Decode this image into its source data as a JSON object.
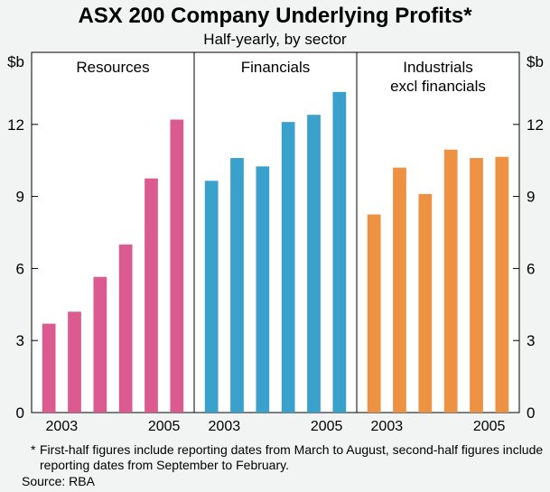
{
  "title": "ASX 200 Company Underlying Profits*",
  "subtitle": "Half-yearly, by sector",
  "footnote_marker": "*",
  "footnote": "First-half figures include reporting dates from March to August, second-half figures include reporting dates from September to February.",
  "source": "Source: RBA",
  "chart_data": {
    "type": "bar",
    "unit_left": "$b",
    "unit_right": "$b",
    "ylim": [
      0,
      15
    ],
    "yticks": [
      0,
      3,
      6,
      9,
      12
    ],
    "grid": false,
    "x_tick_labels": [
      "2003",
      "2005"
    ],
    "panels": [
      {
        "name": "Resources",
        "label_lines": [
          "Resources"
        ],
        "color": "#db5a8f",
        "values": [
          3.7,
          4.2,
          5.65,
          7.0,
          9.75,
          12.2
        ]
      },
      {
        "name": "Financials",
        "label_lines": [
          "Financials"
        ],
        "color": "#3aa0cc",
        "values": [
          9.65,
          10.6,
          10.25,
          12.1,
          12.4,
          13.35
        ]
      },
      {
        "name": "Industrials excl financials",
        "label_lines": [
          "Industrials",
          "excl financials"
        ],
        "color": "#ec9242",
        "values": [
          8.25,
          10.2,
          9.1,
          10.95,
          10.6,
          10.65
        ]
      }
    ]
  }
}
